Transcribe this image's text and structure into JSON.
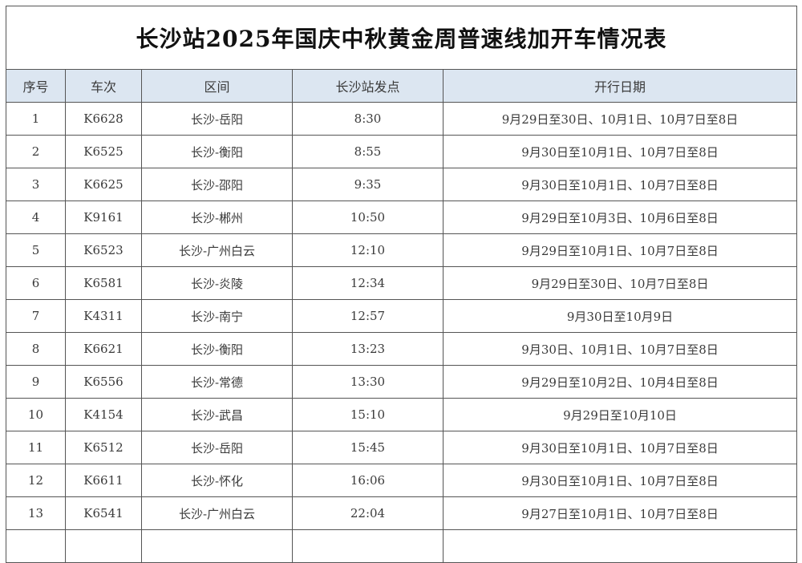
{
  "title": "长沙站2025年国庆中秋黄金周普速线加开车情况表",
  "columns": [
    "序号",
    "车次",
    "区间",
    "长沙站发点",
    "开行日期"
  ],
  "colors": {
    "header_bg": "#dce6f1",
    "border": "#555555"
  },
  "rows": [
    [
      "1",
      "K6628",
      "长沙-岳阳",
      "8:30",
      "9月29日至30日、10月1日、10月7日至8日"
    ],
    [
      "2",
      "K6525",
      "长沙-衡阳",
      "8:55",
      "9月30日至10月1日、10月7日至8日"
    ],
    [
      "3",
      "K6625",
      "长沙-邵阳",
      "9:35",
      "9月30日至10月1日、10月7日至8日"
    ],
    [
      "4",
      "K9161",
      "长沙-郴州",
      "10:50",
      "9月29日至10月3日、10月6日至8日"
    ],
    [
      "5",
      "K6523",
      "长沙-广州白云",
      "12:10",
      "9月29日至10月1日、10月7日至8日"
    ],
    [
      "6",
      "K6581",
      "长沙-炎陵",
      "12:34",
      "9月29日至30日、10月7日至8日"
    ],
    [
      "7",
      "K4311",
      "长沙-南宁",
      "12:57",
      "9月30日至10月9日"
    ],
    [
      "8",
      "K6621",
      "长沙-衡阳",
      "13:23",
      "9月30日、10月1日、10月7日至8日"
    ],
    [
      "9",
      "K6556",
      "长沙-常德",
      "13:30",
      "9月29日至10月2日、10月4日至8日"
    ],
    [
      "10",
      "K4154",
      "长沙-武昌",
      "15:10",
      "9月29日至10月10日"
    ],
    [
      "11",
      "K6512",
      "长沙-岳阳",
      "15:45",
      "9月30日至10月1日、10月7日至8日"
    ],
    [
      "12",
      "K6611",
      "长沙-怀化",
      "16:06",
      "9月30日至10月1日、10月7日至8日"
    ],
    [
      "13",
      "K6541",
      "长沙-广州白云",
      "22:04",
      "9月27日至10月1日、10月7日至8日"
    ]
  ]
}
